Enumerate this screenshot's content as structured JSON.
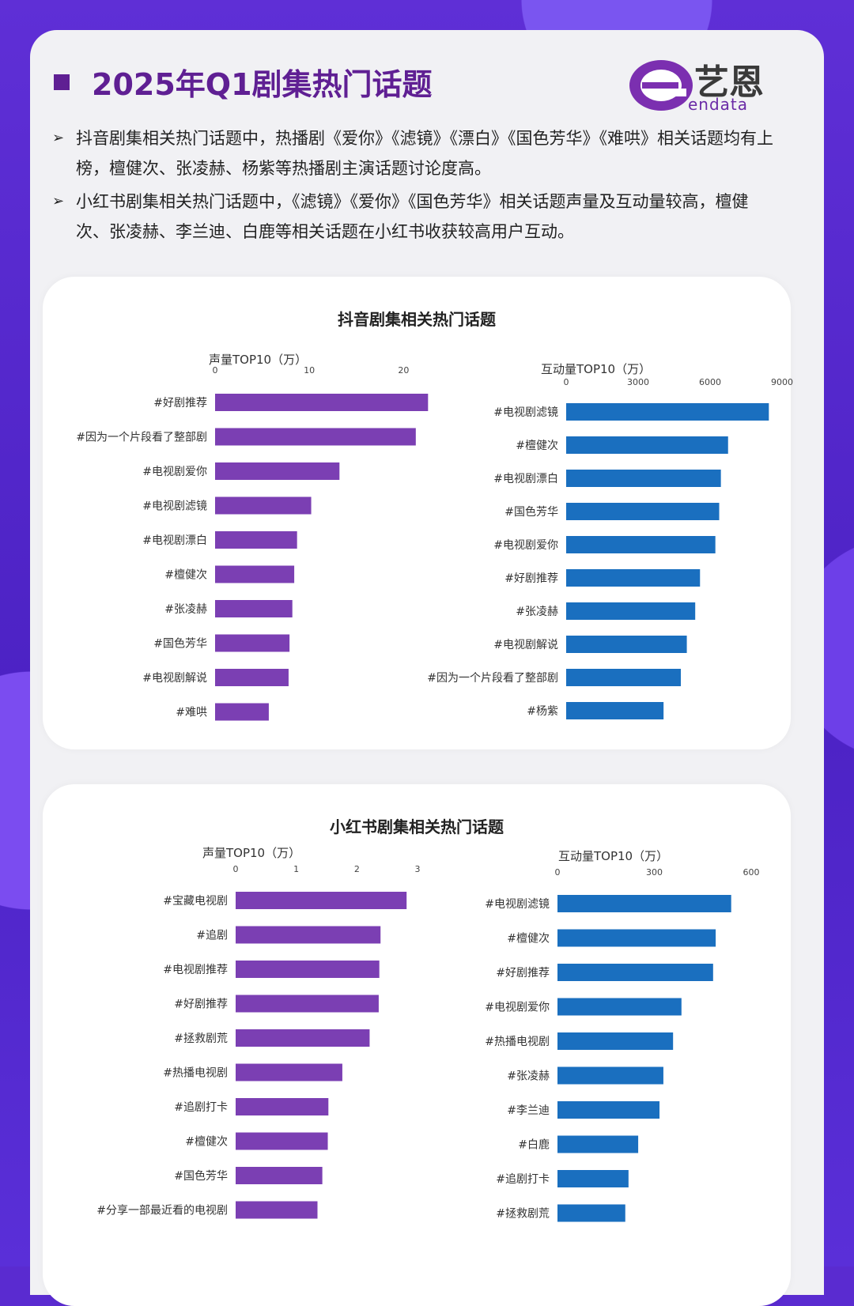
{
  "title": "2025年Q1剧集热门话题",
  "logo": {
    "cn": "艺恩",
    "en": "endata"
  },
  "bullets": [
    "抖音剧集相关热门话题中，热播剧《爱你》《滤镜》《漂白》《国色芳华》《难哄》相关话题均有上榜，檀健次、张凌赫、杨紫等热播剧主演话题讨论度高。",
    "小红书剧集相关热门话题中，《滤镜》《爱你》《国色芳华》相关话题声量及互动量较高，檀健次、张凌赫、李兰迪、白鹿等相关话题在小红书收获较高用户互动。"
  ],
  "colors": {
    "purple": "#7b3fb3",
    "blue": "#1a6fbf",
    "title": "#5f1f93"
  },
  "douyin": {
    "title": "抖音剧集相关热门话题",
    "left_label": "声量TOP10（万）",
    "right_label": "互动量TOP10（万）"
  },
  "xhs": {
    "title": "小红书剧集相关热门话题",
    "left_label": "声量TOP10（万）",
    "right_label": "互动量TOP10（万）"
  },
  "chart_data": [
    {
      "type": "bar",
      "orientation": "horizontal",
      "xlabel": "声量TOP10（万）",
      "ticks": [
        0,
        10,
        20
      ],
      "xlim": [
        0,
        24
      ],
      "categories": [
        "#好剧推荐",
        "#因为一个片段看了整部剧",
        "#电视剧爱你",
        "#电视剧滤镜",
        "#电视剧漂白",
        "#檀健次",
        "#张凌赫",
        "#国色芳华",
        "#电视剧解说",
        "#难哄"
      ],
      "values": [
        22.6,
        21.3,
        13.2,
        10.2,
        8.7,
        8.4,
        8.2,
        7.9,
        7.8,
        5.7
      ]
    },
    {
      "type": "bar",
      "orientation": "horizontal",
      "xlabel": "互动量TOP10（万）",
      "ticks": [
        0,
        3000,
        6000,
        9000
      ],
      "xlim": [
        0,
        9000
      ],
      "categories": [
        "#电视剧滤镜",
        "#檀健次",
        "#电视剧漂白",
        "#国色芳华",
        "#电视剧爱你",
        "#好剧推荐",
        "#张凌赫",
        "#电视剧解说",
        "#因为一个片段看了整部剧",
        "#杨紫"
      ],
      "values": [
        8450,
        6750,
        6450,
        6380,
        6220,
        5580,
        5380,
        5030,
        4780,
        4060
      ]
    },
    {
      "type": "bar",
      "orientation": "horizontal",
      "xlabel": "声量TOP10（万）",
      "ticks": [
        0,
        1,
        2,
        3
      ],
      "xlim": [
        0,
        3
      ],
      "categories": [
        "#宝藏电视剧",
        "#追剧",
        "#电视剧推荐",
        "#好剧推荐",
        "#拯救剧荒",
        "#热播电视剧",
        "#追剧打卡",
        "#檀健次",
        "#国色芳华",
        "#分享一部最近看的电视剧"
      ],
      "values": [
        2.82,
        2.39,
        2.37,
        2.36,
        2.21,
        1.76,
        1.53,
        1.52,
        1.43,
        1.35
      ]
    },
    {
      "type": "bar",
      "orientation": "horizontal",
      "xlabel": "互动量TOP10（万）",
      "ticks": [
        0,
        300,
        600
      ],
      "xlim": [
        0,
        600
      ],
      "categories": [
        "#电视剧滤镜",
        "#檀健次",
        "#好剧推荐",
        "#电视剧爱你",
        "#热播电视剧",
        "#张凌赫",
        "#李兰迪",
        "#白鹿",
        "#追剧打卡",
        "#拯救剧荒"
      ],
      "values": [
        538,
        490,
        482,
        384,
        358,
        328,
        316,
        250,
        220,
        210
      ]
    }
  ]
}
